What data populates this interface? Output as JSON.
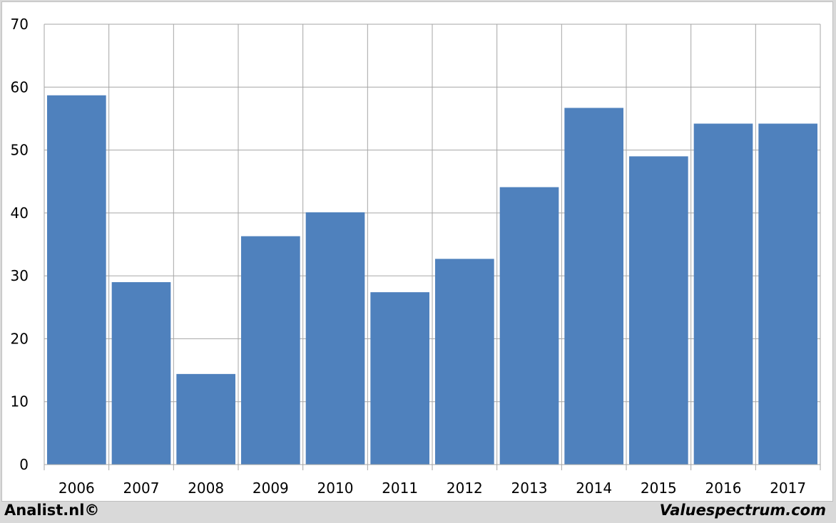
{
  "footer": {
    "left_label": "Analist.nl©",
    "right_label": "Valuespectrum.com"
  },
  "chart_data": {
    "type": "bar",
    "title": "",
    "xlabel": "",
    "ylabel": "",
    "categories": [
      "2006",
      "2007",
      "2008",
      "2009",
      "2010",
      "2011",
      "2012",
      "2013",
      "2014",
      "2015",
      "2016",
      "2017"
    ],
    "values": [
      58.7,
      29.0,
      14.4,
      36.3,
      40.1,
      27.4,
      32.7,
      44.1,
      56.7,
      49.0,
      54.2,
      54.2
    ],
    "ylim": [
      0,
      70
    ],
    "yticks": [
      0,
      10,
      20,
      30,
      40,
      50,
      60,
      70
    ],
    "grid": true,
    "legend": "none",
    "bar_color": "#4f81bd",
    "grid_color": "#a6a6a6"
  }
}
